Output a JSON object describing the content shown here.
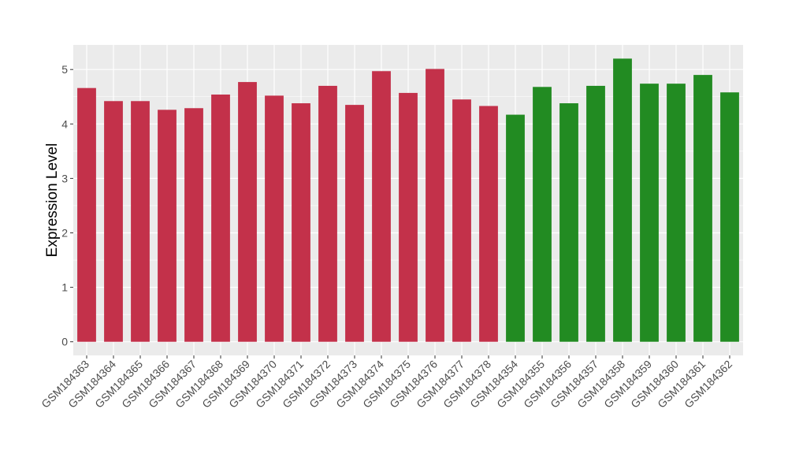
{
  "chart_data": {
    "type": "bar",
    "title": "",
    "xlabel": "",
    "ylabel": "Expression Level",
    "ylim": [
      -0.25,
      5.45
    ],
    "yticks": [
      0,
      1,
      2,
      3,
      4,
      5
    ],
    "grid": true,
    "legend": "none",
    "categories": [
      "GSM184363",
      "GSM184364",
      "GSM184365",
      "GSM184366",
      "GSM184367",
      "GSM184368",
      "GSM184369",
      "GSM184370",
      "GSM184371",
      "GSM184372",
      "GSM184373",
      "GSM184374",
      "GSM184375",
      "GSM184376",
      "GSM184377",
      "GSM184378",
      "GSM184354",
      "GSM184355",
      "GSM184356",
      "GSM184357",
      "GSM184358",
      "GSM184359",
      "GSM184360",
      "GSM184361",
      "GSM184362"
    ],
    "values": [
      4.66,
      4.42,
      4.42,
      4.26,
      4.29,
      4.54,
      4.77,
      4.52,
      4.38,
      4.7,
      4.35,
      4.97,
      4.57,
      5.01,
      4.45,
      4.33,
      4.17,
      4.68,
      4.38,
      4.7,
      5.2,
      4.74,
      4.74,
      4.9,
      4.58
    ],
    "groups": [
      "red",
      "red",
      "red",
      "red",
      "red",
      "red",
      "red",
      "red",
      "red",
      "red",
      "red",
      "red",
      "red",
      "red",
      "red",
      "red",
      "green",
      "green",
      "green",
      "green",
      "green",
      "green",
      "green",
      "green",
      "green"
    ],
    "colors": {
      "red": "#c3314a",
      "green": "#228b22",
      "panel": "#ebebeb",
      "grid": "#ffffff"
    }
  }
}
